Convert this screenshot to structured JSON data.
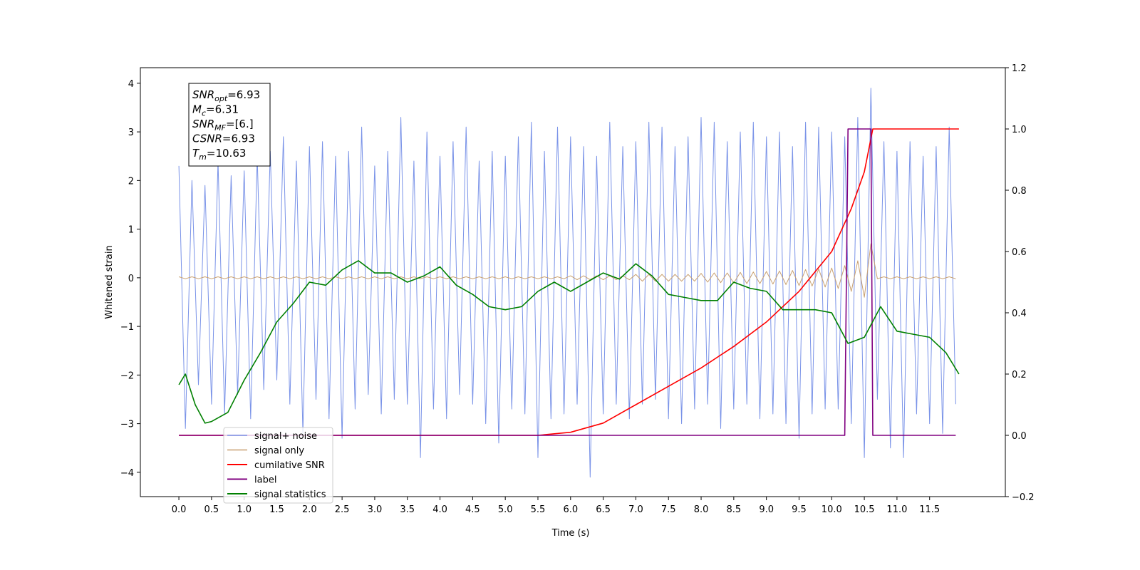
{
  "chart_data": {
    "type": "line",
    "xlabel": "Time (s)",
    "ylabel": "Whitened strain",
    "xlim": [
      -0.59,
      12.66
    ],
    "ylim": [
      -4.5,
      4.32
    ],
    "y2lim": [
      -0.2,
      1.2
    ],
    "xticks": [
      {
        "value": 0,
        "label": "0.0"
      },
      0.5,
      {
        "value": 1,
        "label": "1.0"
      },
      1.5,
      {
        "value": 2,
        "label": "2.0"
      },
      2.5,
      {
        "value": 3,
        "label": "3.0"
      },
      3.5,
      {
        "value": 4,
        "label": "4.0"
      },
      4.5,
      {
        "value": 5,
        "label": "5.0"
      },
      5.5,
      {
        "value": 6,
        "label": "6.0"
      },
      6.5,
      {
        "value": 7,
        "label": "7.0"
      },
      7.5,
      {
        "value": 8,
        "label": "8.0"
      },
      8.5,
      {
        "value": 9,
        "label": "9.0"
      },
      9.5,
      {
        "value": 10,
        "label": "10.0"
      },
      10.5,
      {
        "value": 11,
        "label": "11.0"
      },
      11.5
    ],
    "yticks": [
      {
        "value": -4,
        "label": "−4"
      },
      {
        "value": -3,
        "label": "−3"
      },
      {
        "value": -2,
        "label": "−2"
      },
      {
        "value": -1,
        "label": "−1"
      },
      0,
      1,
      2,
      3,
      4
    ],
    "y2ticks": [
      {
        "value": -0.2,
        "label": "−0.2"
      },
      {
        "value": 0,
        "label": "0.0"
      },
      0.2,
      0.4,
      0.6,
      0.8,
      {
        "value": 1,
        "label": "1.0"
      },
      1.2
    ],
    "legend": "lower left",
    "textbox": [
      {
        "symbol": "SNR",
        "sub": "opt",
        "value": "=6.93"
      },
      {
        "symbol": "M",
        "sub": "c",
        "value": "=6.31"
      },
      {
        "symbol": "SNR",
        "sub": "MF",
        "value": "=[6.]"
      },
      {
        "symbol": "CSNR",
        "sub": "",
        "value": "=6.93"
      },
      {
        "symbol": "T",
        "sub": "m",
        "value": "=10.63"
      }
    ],
    "series": [
      {
        "name": "signal+ noise",
        "color": "#7a93e8",
        "width": 1,
        "x": [
          0,
          0.1,
          0.2,
          0.3,
          0.4,
          0.5,
          0.6,
          0.7,
          0.8,
          0.9,
          1,
          1.1,
          1.2,
          1.3,
          1.4,
          1.5,
          1.6,
          1.7,
          1.8,
          1.9,
          2,
          2.1,
          2.2,
          2.3,
          2.4,
          2.5,
          2.6,
          2.7,
          2.8,
          2.9,
          3,
          3.1,
          3.2,
          3.3,
          3.4,
          3.5,
          3.6,
          3.7,
          3.8,
          3.9,
          4,
          4.1,
          4.2,
          4.3,
          4.4,
          4.5,
          4.6,
          4.7,
          4.8,
          4.9,
          5,
          5.1,
          5.2,
          5.3,
          5.4,
          5.5,
          5.6,
          5.7,
          5.8,
          5.9,
          6,
          6.1,
          6.2,
          6.3,
          6.4,
          6.5,
          6.6,
          6.7,
          6.8,
          6.9,
          7,
          7.1,
          7.2,
          7.3,
          7.4,
          7.5,
          7.6,
          7.7,
          7.8,
          7.9,
          8,
          8.1,
          8.2,
          8.3,
          8.4,
          8.5,
          8.6,
          8.7,
          8.8,
          8.9,
          9,
          9.1,
          9.2,
          9.3,
          9.4,
          9.5,
          9.6,
          9.7,
          9.8,
          9.9,
          10,
          10.1,
          10.2,
          10.3,
          10.4,
          10.5,
          10.6,
          10.7,
          10.8,
          10.9,
          11,
          11.1,
          11.2,
          11.3,
          11.4,
          11.5,
          11.6,
          11.7,
          11.8,
          11.9
        ],
        "values": [
          2.3,
          -3.1,
          2.0,
          -2.2,
          1.9,
          -2.6,
          2.4,
          -2.8,
          2.1,
          -2.4,
          2.2,
          -2.9,
          2.5,
          -2.3,
          2.6,
          -2.1,
          2.9,
          -2.6,
          2.4,
          -3.2,
          2.7,
          -2.5,
          2.8,
          -2.9,
          2.5,
          -3.3,
          2.6,
          -2.7,
          3.1,
          -2.4,
          2.3,
          -2.8,
          2.6,
          -2.5,
          3.3,
          -2.6,
          2.4,
          -3.7,
          3.0,
          -2.7,
          2.5,
          -2.9,
          2.8,
          -2.4,
          3.1,
          -2.6,
          2.4,
          -3.0,
          2.6,
          -3.4,
          2.5,
          -2.7,
          2.9,
          -2.8,
          3.2,
          -3.7,
          2.6,
          -2.9,
          3.1,
          -2.8,
          2.9,
          -2.6,
          2.7,
          -4.1,
          2.5,
          -2.8,
          3.2,
          -2.6,
          2.7,
          -2.9,
          2.8,
          -2.6,
          3.2,
          -2.5,
          3.1,
          -2.9,
          2.7,
          -3.0,
          2.9,
          -2.7,
          3.3,
          -2.6,
          3.2,
          -3.1,
          2.8,
          -2.7,
          3.0,
          -2.6,
          3.2,
          -2.9,
          2.9,
          -2.8,
          3.0,
          -3.0,
          2.7,
          -3.3,
          3.2,
          -2.8,
          3.1,
          -2.7,
          3.0,
          -2.7,
          2.9,
          -3.0,
          3.3,
          -3.7,
          3.9,
          -2.5,
          2.8,
          -3.5,
          2.6,
          -3.7,
          2.8,
          -2.8,
          2.5,
          -3.0,
          2.7,
          -3.2,
          3.1,
          -2.6
        ]
      },
      {
        "name": "signal only",
        "color": "#c8a070",
        "width": 1,
        "x": [
          0,
          0.1,
          0.2,
          0.3,
          0.4,
          0.5,
          0.6,
          0.7,
          0.8,
          0.9,
          1,
          1.1,
          1.2,
          1.3,
          1.4,
          1.5,
          1.6,
          1.7,
          1.8,
          1.9,
          2,
          2.1,
          2.2,
          2.3,
          2.4,
          2.5,
          2.6,
          2.7,
          2.8,
          2.9,
          3,
          3.1,
          3.2,
          3.3,
          3.4,
          3.5,
          3.6,
          3.7,
          3.8,
          3.9,
          4,
          4.1,
          4.2,
          4.3,
          4.4,
          4.5,
          4.6,
          4.7,
          4.8,
          4.9,
          5,
          5.1,
          5.2,
          5.3,
          5.4,
          5.5,
          5.6,
          5.7,
          5.8,
          5.9,
          6,
          6.1,
          6.2,
          6.3,
          6.4,
          6.5,
          6.6,
          6.7,
          6.8,
          6.9,
          7,
          7.1,
          7.2,
          7.3,
          7.4,
          7.5,
          7.6,
          7.7,
          7.8,
          7.9,
          8,
          8.1,
          8.2,
          8.3,
          8.4,
          8.5,
          8.6,
          8.7,
          8.8,
          8.9,
          9,
          9.1,
          9.2,
          9.3,
          9.4,
          9.5,
          9.6,
          9.7,
          9.8,
          9.9,
          10,
          10.1,
          10.2,
          10.3,
          10.4,
          10.5,
          10.6,
          10.7,
          10.8,
          10.9,
          11,
          11.1,
          11.2,
          11.3,
          11.4,
          11.5,
          11.6,
          11.7,
          11.8,
          11.9
        ],
        "values": [
          0.02,
          -0.02,
          0.02,
          -0.02,
          0.02,
          -0.02,
          0.02,
          -0.02,
          0.02,
          -0.02,
          0.02,
          -0.02,
          0.02,
          -0.02,
          0.02,
          -0.02,
          0.02,
          -0.02,
          0.02,
          -0.02,
          0.02,
          -0.02,
          0.02,
          -0.02,
          0.02,
          -0.02,
          0.02,
          -0.02,
          0.02,
          -0.02,
          0.02,
          -0.02,
          0.02,
          -0.02,
          0.02,
          -0.02,
          0.02,
          -0.02,
          0.02,
          -0.02,
          0.02,
          -0.02,
          0.02,
          -0.02,
          0.02,
          -0.02,
          0.02,
          -0.02,
          0.02,
          -0.02,
          0.02,
          -0.02,
          0.02,
          -0.02,
          0.02,
          -0.02,
          0.02,
          -0.02,
          0.02,
          -0.02,
          0.04,
          -0.04,
          0.04,
          -0.04,
          0.04,
          -0.04,
          0.04,
          -0.04,
          0.04,
          -0.04,
          0.07,
          -0.07,
          0.07,
          -0.07,
          0.07,
          -0.07,
          0.07,
          -0.07,
          0.07,
          -0.07,
          0.09,
          -0.09,
          0.1,
          -0.1,
          0.1,
          -0.11,
          0.11,
          -0.12,
          0.12,
          -0.12,
          0.13,
          -0.13,
          0.14,
          -0.14,
          0.15,
          -0.16,
          0.17,
          -0.17,
          0.18,
          -0.19,
          0.2,
          -0.22,
          0.25,
          -0.28,
          0.35,
          -0.4,
          0.7,
          -0.02,
          0.02,
          -0.02,
          0.02,
          -0.02,
          0.02,
          -0.02,
          0.02,
          -0.02,
          0.02,
          -0.02,
          0.02,
          -0.02
        ]
      },
      {
        "name": "cumilative SNR",
        "color": "#ff0000",
        "width": 1.6,
        "axis": "y2",
        "x": [
          0,
          5.5,
          6.0,
          6.5,
          7.0,
          7.5,
          8.0,
          8.5,
          9.0,
          9.5,
          10.0,
          10.3,
          10.5,
          10.63,
          11.95
        ],
        "values": [
          0,
          0,
          0.01,
          0.04,
          0.1,
          0.16,
          0.22,
          0.29,
          0.37,
          0.47,
          0.6,
          0.74,
          0.86,
          1.0,
          1.0
        ]
      },
      {
        "name": "label",
        "color": "#800080",
        "width": 1.6,
        "axis": "y2",
        "x": [
          0,
          10.2,
          10.25,
          10.6,
          10.63,
          11.9
        ],
        "values": [
          0,
          0,
          1,
          1,
          0,
          0
        ]
      },
      {
        "name": "signal statistics",
        "color": "#008000",
        "width": 1.6,
        "axis": "y2",
        "x": [
          0,
          0.1,
          0.25,
          0.4,
          0.5,
          0.75,
          1,
          1.25,
          1.5,
          1.75,
          2,
          2.25,
          2.5,
          2.75,
          3,
          3.25,
          3.5,
          3.75,
          4,
          4.25,
          4.5,
          4.75,
          5,
          5.25,
          5.5,
          5.75,
          6,
          6.25,
          6.5,
          6.75,
          7,
          7.25,
          7.5,
          7.75,
          8,
          8.25,
          8.5,
          8.75,
          9,
          9.25,
          9.5,
          9.75,
          10,
          10.25,
          10.5,
          10.75,
          11,
          11.25,
          11.5,
          11.75,
          11.95
        ],
        "values": [
          0.165,
          0.2,
          0.1,
          0.04,
          0.045,
          0.075,
          0.18,
          0.27,
          0.37,
          0.43,
          0.5,
          0.49,
          0.54,
          0.57,
          0.53,
          0.53,
          0.5,
          0.52,
          0.55,
          0.49,
          0.46,
          0.42,
          0.41,
          0.42,
          0.47,
          0.5,
          0.47,
          0.5,
          0.53,
          0.51,
          0.56,
          0.52,
          0.46,
          0.45,
          0.44,
          0.44,
          0.5,
          0.48,
          0.47,
          0.41,
          0.41,
          0.41,
          0.4,
          0.3,
          0.32,
          0.42,
          0.34,
          0.33,
          0.32,
          0.27,
          0.2
        ]
      }
    ]
  }
}
